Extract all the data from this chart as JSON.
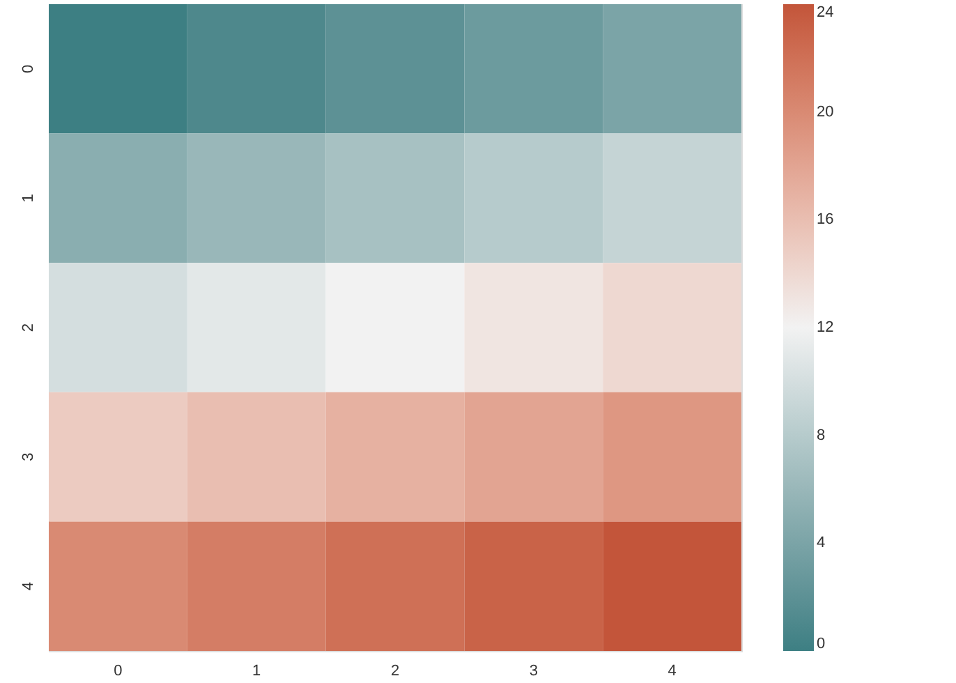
{
  "chart_data": {
    "type": "heatmap",
    "categories": [
      "0",
      "1",
      "2",
      "3",
      "4"
    ],
    "y_categories": [
      "0",
      "1",
      "2",
      "3",
      "4"
    ],
    "cells": [
      [
        0,
        1,
        2,
        3,
        4
      ],
      [
        5,
        6,
        7,
        8,
        9
      ],
      [
        10,
        11,
        12,
        13,
        14
      ],
      [
        15,
        16,
        17,
        18,
        19
      ],
      [
        20,
        21,
        22,
        23,
        24
      ]
    ],
    "clim": [
      0,
      24
    ],
    "cticks": [
      0,
      4,
      8,
      12,
      16,
      20,
      24
    ],
    "colors": [
      "#3d7f83",
      "#f2f2f2",
      "#c3553a"
    ],
    "grid": false
  }
}
